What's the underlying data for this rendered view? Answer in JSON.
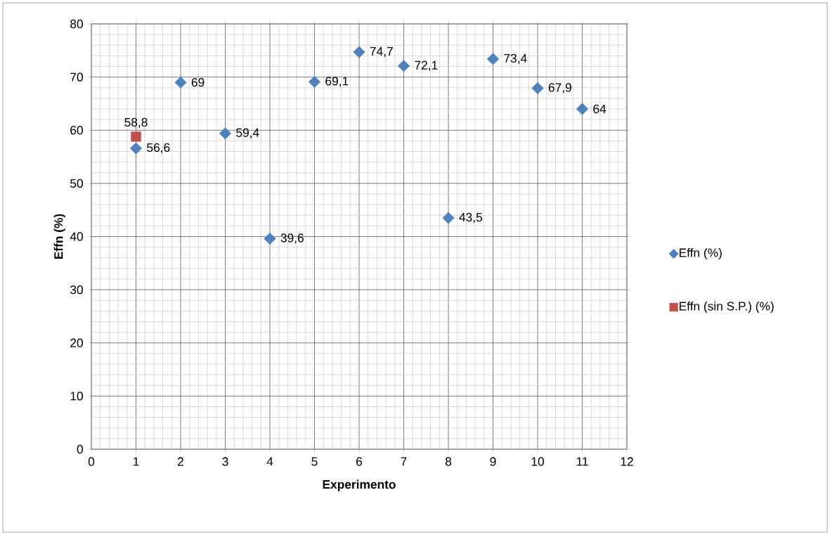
{
  "chart_data": {
    "type": "scatter",
    "xlabel": "Experimento",
    "ylabel": "Effn (%)",
    "xlim": [
      0,
      12
    ],
    "xticks": [
      0,
      1,
      2,
      3,
      4,
      5,
      6,
      7,
      8,
      9,
      10,
      11,
      12
    ],
    "ylim": [
      0,
      80
    ],
    "yticks": [
      0,
      10,
      20,
      30,
      40,
      50,
      60,
      70,
      80
    ],
    "grid": true,
    "legend": "right",
    "series": [
      {
        "name": "Effn (%)",
        "color": "#4f81bd",
        "marker": "diamond",
        "x": [
          1,
          2,
          3,
          4,
          5,
          6,
          7,
          8,
          9,
          10,
          11
        ],
        "values": [
          56.6,
          69,
          59.4,
          39.6,
          69.1,
          74.7,
          72.1,
          43.5,
          73.4,
          67.9,
          64
        ],
        "value_labels": [
          "56,6",
          "69",
          "59,4",
          "39,6",
          "69,1",
          "74,7",
          "72,1",
          "43,5",
          "73,4",
          "67,9",
          "64"
        ]
      },
      {
        "name": "Effn  (sin S.P.) (%)",
        "color": "#c0504d",
        "marker": "square",
        "x": [
          1
        ],
        "values": [
          58.8
        ],
        "value_labels": [
          "58,8"
        ]
      }
    ]
  }
}
